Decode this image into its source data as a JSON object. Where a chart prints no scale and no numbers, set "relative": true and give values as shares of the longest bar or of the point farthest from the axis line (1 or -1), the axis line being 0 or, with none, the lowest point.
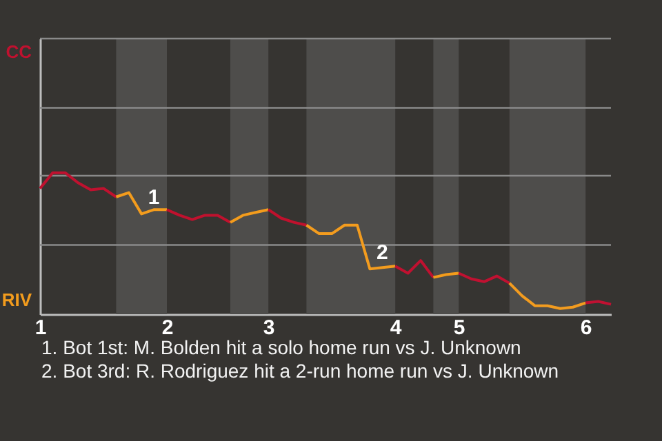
{
  "chart_data": {
    "type": "line",
    "relative": true,
    "categories": [
      "1",
      null,
      null,
      null,
      null,
      null,
      null,
      null,
      null,
      null,
      "2",
      null,
      null,
      null,
      null,
      null,
      null,
      null,
      "3",
      null,
      null,
      null,
      null,
      null,
      null,
      null,
      null,
      null,
      "4",
      null,
      null,
      null,
      null,
      "5",
      null,
      null,
      null,
      null,
      null,
      null,
      null,
      null,
      null,
      "6",
      null,
      null
    ],
    "series": [
      {
        "name": "CC",
        "color": "#c0112f",
        "values": [
          0.89,
          1,
          1,
          0.93,
          0.88,
          0.89,
          0.83,
          null,
          null,
          null,
          null,
          null,
          null,
          null,
          null,
          null,
          null,
          null,
          null,
          null,
          null,
          null,
          null,
          null,
          null,
          null,
          null,
          null,
          null,
          null,
          null,
          null,
          null,
          null,
          null,
          null,
          null,
          null,
          null,
          null,
          null,
          null,
          null,
          null,
          null,
          null
        ]
      },
      {
        "name": "RIV",
        "color": "#f39c1d",
        "values": [
          null,
          null,
          null,
          null,
          null,
          null,
          0.83,
          0.86,
          0.71,
          0.74,
          0.74,
          null,
          null,
          null,
          null,
          null,
          null,
          null,
          null,
          null,
          null,
          null,
          null,
          null,
          null,
          null,
          null,
          null,
          null,
          null,
          null,
          null,
          null,
          null,
          null,
          null,
          null,
          null,
          null,
          null,
          null,
          null,
          null,
          null,
          null,
          null
        ]
      },
      {
        "color": "#c0112e",
        "values": [
          null,
          null,
          null,
          null,
          null,
          null,
          null,
          null,
          null,
          null,
          0.74,
          0.7,
          0.67,
          0.7,
          0.7,
          0.65,
          null,
          null,
          null,
          null,
          null,
          null,
          null,
          null,
          null,
          null,
          null,
          null,
          null,
          null,
          null,
          null,
          null,
          null,
          null,
          null,
          null,
          null,
          null,
          null,
          null,
          null,
          null,
          null,
          null,
          null
        ]
      },
      {
        "color": "#f39c1c",
        "values": [
          null,
          null,
          null,
          null,
          null,
          null,
          null,
          null,
          null,
          null,
          null,
          null,
          null,
          null,
          null,
          0.65,
          0.7,
          0.72,
          0.74,
          null,
          null,
          null,
          null,
          null,
          null,
          null,
          null,
          null,
          null,
          null,
          null,
          null,
          null,
          null,
          null,
          null,
          null,
          null,
          null,
          null,
          null,
          null,
          null,
          null,
          null,
          null
        ]
      },
      {
        "color": "#c0112d",
        "values": [
          null,
          null,
          null,
          null,
          null,
          null,
          null,
          null,
          null,
          null,
          null,
          null,
          null,
          null,
          null,
          null,
          null,
          null,
          0.74,
          0.68,
          0.65,
          0.63,
          null,
          null,
          null,
          null,
          null,
          null,
          null,
          null,
          null,
          null,
          null,
          null,
          null,
          null,
          null,
          null,
          null,
          null,
          null,
          null,
          null,
          null,
          null,
          null
        ]
      },
      {
        "color": "#f39c1e",
        "values": [
          null,
          null,
          null,
          null,
          null,
          null,
          null,
          null,
          null,
          null,
          null,
          null,
          null,
          null,
          null,
          null,
          null,
          null,
          null,
          null,
          null,
          0.63,
          0.57,
          0.57,
          0.63,
          0.63,
          0.32,
          0.33,
          0.34,
          null,
          null,
          null,
          null,
          null,
          null,
          null,
          null,
          null,
          null,
          null,
          null,
          null,
          null,
          null,
          null,
          null
        ]
      },
      {
        "color": "#c01130",
        "values": [
          null,
          null,
          null,
          null,
          null,
          null,
          null,
          null,
          null,
          null,
          null,
          null,
          null,
          null,
          null,
          null,
          null,
          null,
          null,
          null,
          null,
          null,
          null,
          null,
          null,
          null,
          null,
          null,
          0.34,
          0.29,
          0.38,
          0.26,
          null,
          null,
          null,
          null,
          null,
          null,
          null,
          null,
          null,
          null,
          null,
          null,
          null,
          null
        ]
      },
      {
        "color": "#f39c1b",
        "values": [
          null,
          null,
          null,
          null,
          null,
          null,
          null,
          null,
          null,
          null,
          null,
          null,
          null,
          null,
          null,
          null,
          null,
          null,
          null,
          null,
          null,
          null,
          null,
          null,
          null,
          null,
          null,
          null,
          null,
          null,
          null,
          0.26,
          0.28,
          0.29,
          null,
          null,
          null,
          null,
          null,
          null,
          null,
          null,
          null,
          null,
          null,
          null
        ]
      },
      {
        "color": "#c01131",
        "values": [
          null,
          null,
          null,
          null,
          null,
          null,
          null,
          null,
          null,
          null,
          null,
          null,
          null,
          null,
          null,
          null,
          null,
          null,
          null,
          null,
          null,
          null,
          null,
          null,
          null,
          null,
          null,
          null,
          null,
          null,
          null,
          null,
          null,
          0.29,
          0.25,
          0.23,
          0.27,
          0.22,
          null,
          null,
          null,
          null,
          null,
          null,
          null,
          null
        ]
      },
      {
        "color": "#f39c1f",
        "values": [
          null,
          null,
          null,
          null,
          null,
          null,
          null,
          null,
          null,
          null,
          null,
          null,
          null,
          null,
          null,
          null,
          null,
          null,
          null,
          null,
          null,
          null,
          null,
          null,
          null,
          null,
          null,
          null,
          null,
          null,
          null,
          null,
          null,
          null,
          null,
          null,
          null,
          0.22,
          0.13,
          0.06,
          0.06,
          0.04,
          0.05,
          0.08,
          null,
          null
        ]
      },
      {
        "color": "#c01132",
        "values": [
          null,
          null,
          null,
          null,
          null,
          null,
          null,
          null,
          null,
          null,
          null,
          null,
          null,
          null,
          null,
          null,
          null,
          null,
          null,
          null,
          null,
          null,
          null,
          null,
          null,
          null,
          null,
          null,
          null,
          null,
          null,
          null,
          null,
          null,
          null,
          null,
          null,
          null,
          null,
          null,
          null,
          null,
          null,
          0.08,
          0.09,
          0.07
        ]
      }
    ],
    "ref_lines": [
      {
        "axis": "y",
        "value": 0.49,
        "label": null,
        "color": "#8a8a8a"
      },
      {
        "axis": "y",
        "value": 0.98,
        "label": null,
        "color": "#8a8a8a"
      },
      {
        "axis": "y",
        "value": 1.46,
        "label": null,
        "color": "#8a8a8a"
      },
      {
        "axis": "y",
        "value": 1.95,
        "label": null,
        "color": "#8a8a8a"
      }
    ],
    "annotations": [
      "1",
      "2",
      "1. Bot 1st: M. Bolden hit a solo home run vs J. Unknown",
      "2. Bot 3rd: R. Rodriguez hit a 2-run home run vs J. Unknown"
    ]
  }
}
